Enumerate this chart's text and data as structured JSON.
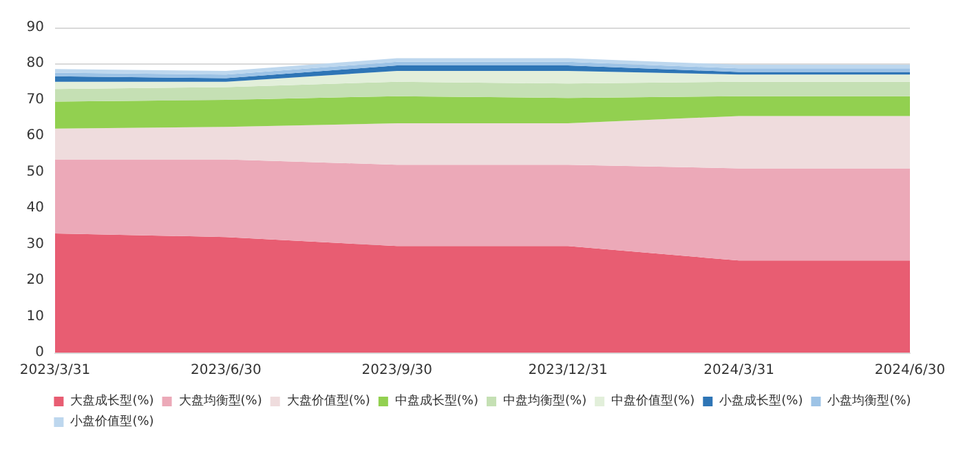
{
  "chart_data": {
    "type": "area",
    "stacked": true,
    "categories": [
      "2023/3/31",
      "2023/6/30",
      "2023/9/30",
      "2023/12/31",
      "2024/3/31",
      "2024/6/30"
    ],
    "series": [
      {
        "name": "大盘成长型(%)",
        "color": "#e85d72",
        "values": [
          33,
          32,
          29.5,
          29.5,
          25.5,
          25.5
        ]
      },
      {
        "name": "大盘均衡型(%)",
        "color": "#eca9b8",
        "values": [
          20.5,
          21.5,
          22.5,
          22.5,
          25.5,
          25.5
        ]
      },
      {
        "name": "大盘价值型(%)",
        "color": "#efdcdd",
        "values": [
          8.5,
          9,
          11.5,
          11.5,
          14.5,
          14.5
        ]
      },
      {
        "name": "中盘成长型(%)",
        "color": "#92d050",
        "values": [
          7.5,
          7.5,
          7.5,
          7,
          5.5,
          5.5
        ]
      },
      {
        "name": "中盘均衡型(%)",
        "color": "#c5e0b4",
        "values": [
          3.5,
          3.5,
          4,
          4,
          4,
          4
        ]
      },
      {
        "name": "中盘价值型(%)",
        "color": "#e2efda",
        "values": [
          2,
          1.5,
          3,
          3.5,
          2,
          2
        ]
      },
      {
        "name": "小盘成长型(%)",
        "color": "#2e75b6",
        "values": [
          1.5,
          1,
          1.5,
          1.5,
          0.7,
          0.7
        ]
      },
      {
        "name": "小盘均衡型(%)",
        "color": "#9dc3e6",
        "values": [
          1,
          1,
          1,
          1,
          1,
          1
        ]
      },
      {
        "name": "小盘价值型(%)",
        "color": "#bdd7ee",
        "values": [
          1,
          1,
          1,
          1,
          1,
          1
        ]
      }
    ],
    "ylim": [
      0,
      90
    ],
    "yticks": [
      0,
      10,
      20,
      30,
      40,
      50,
      60,
      70,
      80,
      90
    ],
    "grid": "y",
    "legend": "bottom"
  }
}
